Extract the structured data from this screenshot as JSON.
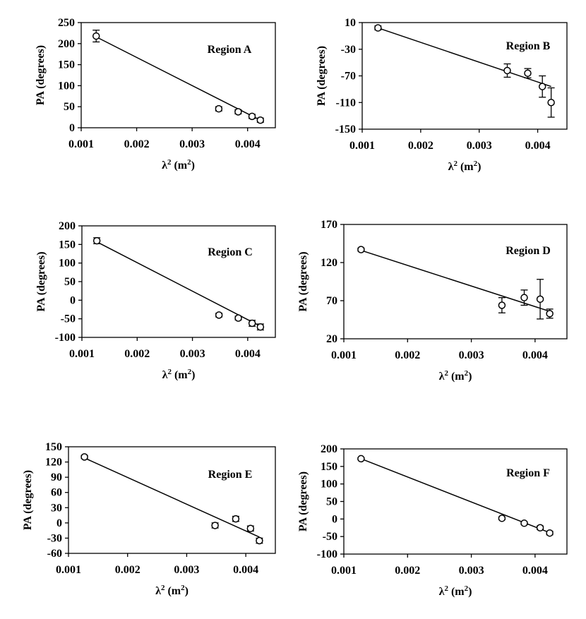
{
  "chart_data": [
    {
      "type": "scatter",
      "title": "Region A",
      "xlabel": "λ² (m²)",
      "xlabel_main": "λ",
      "xlabel_unit": "(m",
      "xlabel_close": ")",
      "ylabel": "PA (degrees)",
      "xlim": [
        0.001,
        0.0045
      ],
      "ylim": [
        0,
        250
      ],
      "xticks": [
        0.001,
        0.002,
        0.003,
        0.004
      ],
      "xtick_labels": [
        "0.001",
        "0.002",
        "0.003",
        "0.004"
      ],
      "yticks": [
        0,
        50,
        100,
        150,
        200,
        250
      ],
      "ytick_labels": [
        "0",
        "50",
        "100",
        "150",
        "200",
        "250"
      ],
      "x": [
        0.00127,
        0.00348,
        0.00383,
        0.00408,
        0.00423
      ],
      "y": [
        218,
        45,
        38,
        27,
        18
      ],
      "yerr": [
        14,
        5,
        5,
        5,
        5
      ],
      "fit_line": {
        "x": [
          0.00127,
          0.00423
        ],
        "y": [
          216,
          18
        ]
      }
    },
    {
      "type": "scatter",
      "title": "Region B",
      "xlabel": "λ² (m²)",
      "xlabel_main": "λ",
      "xlabel_unit": "(m",
      "xlabel_close": ")",
      "ylabel": "PA (degrees)",
      "xlim": [
        0.001,
        0.0045
      ],
      "ylim": [
        -150,
        10
      ],
      "xticks": [
        0.001,
        0.002,
        0.003,
        0.004
      ],
      "xtick_labels": [
        "0.001",
        "0.002",
        "0.003",
        "0.004"
      ],
      "yticks": [
        -150,
        -110,
        -70,
        -30,
        10
      ],
      "ytick_labels": [
        "-150",
        "-110",
        "-70",
        "-30",
        "10"
      ],
      "x": [
        0.00127,
        0.00348,
        0.00383,
        0.00408,
        0.00423
      ],
      "y": [
        2,
        -62,
        -66,
        -86,
        -110
      ],
      "yerr": [
        3,
        10,
        7,
        16,
        22
      ],
      "fit_line": {
        "x": [
          0.00127,
          0.00423
        ],
        "y": [
          2,
          -86
        ]
      }
    },
    {
      "type": "scatter",
      "title": "Region C",
      "xlabel": "λ² (m²)",
      "xlabel_main": "λ",
      "xlabel_unit": "(m",
      "xlabel_close": ")",
      "ylabel": "PA (degrees)",
      "xlim": [
        0.001,
        0.0045
      ],
      "ylim": [
        -100,
        200
      ],
      "xticks": [
        0.001,
        0.002,
        0.003,
        0.004
      ],
      "xtick_labels": [
        "0.001",
        "0.002",
        "0.003",
        "0.004"
      ],
      "yticks": [
        -100,
        -50,
        0,
        50,
        100,
        150,
        200
      ],
      "ytick_labels": [
        "-100",
        "-50",
        "0",
        "50",
        "100",
        "150",
        "200"
      ],
      "x": [
        0.00127,
        0.00348,
        0.00383,
        0.00408,
        0.00423
      ],
      "y": [
        160,
        -40,
        -48,
        -62,
        -72
      ],
      "yerr": [
        8,
        5,
        5,
        8,
        8
      ],
      "fit_line": {
        "x": [
          0.00127,
          0.00423
        ],
        "y": [
          157,
          -70
        ]
      }
    },
    {
      "type": "scatter",
      "title": "Region D",
      "xlabel": "λ² (m²)",
      "xlabel_main": "λ",
      "xlabel_unit": "(m",
      "xlabel_close": ")",
      "ylabel": "PA (degrees)",
      "xlim": [
        0.001,
        0.0045
      ],
      "ylim": [
        20,
        170
      ],
      "xticks": [
        0.001,
        0.002,
        0.003,
        0.004
      ],
      "xtick_labels": [
        "0.001",
        "0.002",
        "0.003",
        "0.004"
      ],
      "yticks": [
        20,
        70,
        120,
        170
      ],
      "ytick_labels": [
        "20",
        "70",
        "120",
        "170"
      ],
      "x": [
        0.00127,
        0.00348,
        0.00383,
        0.00408,
        0.00423
      ],
      "y": [
        137,
        64,
        74,
        72,
        53
      ],
      "yerr": [
        2,
        10,
        10,
        26,
        6
      ],
      "fit_line": {
        "x": [
          0.00127,
          0.00423
        ],
        "y": [
          136,
          56
        ]
      }
    },
    {
      "type": "scatter",
      "title": "Region E",
      "xlabel": "λ² (m²)",
      "xlabel_main": "λ",
      "xlabel_unit": "(m",
      "xlabel_close": ")",
      "ylabel": "PA (degrees)",
      "xlim": [
        0.001,
        0.0045
      ],
      "ylim": [
        -60,
        150
      ],
      "xticks": [
        0.001,
        0.002,
        0.003,
        0.004
      ],
      "xtick_labels": [
        "0.001",
        "0.002",
        "0.003",
        "0.004"
      ],
      "yticks": [
        -60,
        -30,
        0,
        30,
        60,
        90,
        120,
        150
      ],
      "ytick_labels": [
        "-60",
        "-30",
        "0",
        "30",
        "60",
        "90",
        "120",
        "150"
      ],
      "x": [
        0.00127,
        0.00348,
        0.00383,
        0.00408,
        0.00423
      ],
      "y": [
        130,
        -5,
        8,
        -11,
        -35
      ],
      "yerr": [
        3,
        5,
        5,
        5,
        5
      ],
      "fit_line": {
        "x": [
          0.00127,
          0.00423
        ],
        "y": [
          128,
          -28
        ]
      }
    },
    {
      "type": "scatter",
      "title": "Region F",
      "xlabel": "λ² (m²)",
      "xlabel_main": "λ",
      "xlabel_unit": "(m",
      "xlabel_close": ")",
      "ylabel": "PA (degrees)",
      "xlim": [
        0.001,
        0.0045
      ],
      "ylim": [
        -100,
        200
      ],
      "xticks": [
        0.001,
        0.002,
        0.003,
        0.004
      ],
      "xtick_labels": [
        "0.001",
        "0.002",
        "0.003",
        "0.004"
      ],
      "yticks": [
        -100,
        -50,
        0,
        50,
        100,
        150,
        200
      ],
      "ytick_labels": [
        "-100",
        "-50",
        "0",
        "50",
        "100",
        "150",
        "200"
      ],
      "x": [
        0.00127,
        0.00348,
        0.00383,
        0.00408,
        0.00423
      ],
      "y": [
        172,
        2,
        -12,
        -25,
        -40
      ],
      "yerr": [
        3,
        4,
        4,
        5,
        5
      ],
      "fit_line": {
        "x": [
          0.00127,
          0.00423
        ],
        "y": [
          172,
          -39
        ]
      }
    }
  ]
}
